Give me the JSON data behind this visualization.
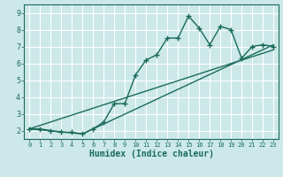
{
  "title": "",
  "xlabel": "Humidex (Indice chaleur)",
  "bg_color": "#cce8e8",
  "grid_color": "#ffffff",
  "line_color": "#1a6b5a",
  "xlim": [
    -0.5,
    23.5
  ],
  "ylim": [
    1.5,
    9.5
  ],
  "xticks": [
    0,
    1,
    2,
    3,
    4,
    5,
    6,
    7,
    8,
    9,
    10,
    11,
    12,
    13,
    14,
    15,
    16,
    17,
    18,
    19,
    20,
    21,
    22,
    23
  ],
  "yticks": [
    2,
    3,
    4,
    5,
    6,
    7,
    8,
    9
  ],
  "line1_x": [
    0,
    1,
    2,
    3,
    4,
    5,
    6,
    7,
    8,
    9,
    10,
    11,
    12,
    13,
    14,
    15,
    16,
    17,
    18,
    19,
    20,
    21,
    22,
    23
  ],
  "line1_y": [
    2.1,
    2.1,
    2.0,
    1.9,
    1.9,
    1.8,
    2.1,
    2.5,
    3.6,
    3.6,
    5.3,
    6.2,
    6.5,
    7.5,
    7.5,
    8.8,
    8.1,
    7.1,
    8.2,
    8.0,
    6.3,
    7.0,
    7.1,
    7.0
  ],
  "line2_x": [
    0,
    23
  ],
  "line2_y": [
    2.1,
    6.8
  ],
  "line3_x": [
    0,
    5,
    23
  ],
  "line3_y": [
    2.1,
    1.8,
    7.1
  ],
  "marker_size": 4,
  "linewidth": 1.0
}
